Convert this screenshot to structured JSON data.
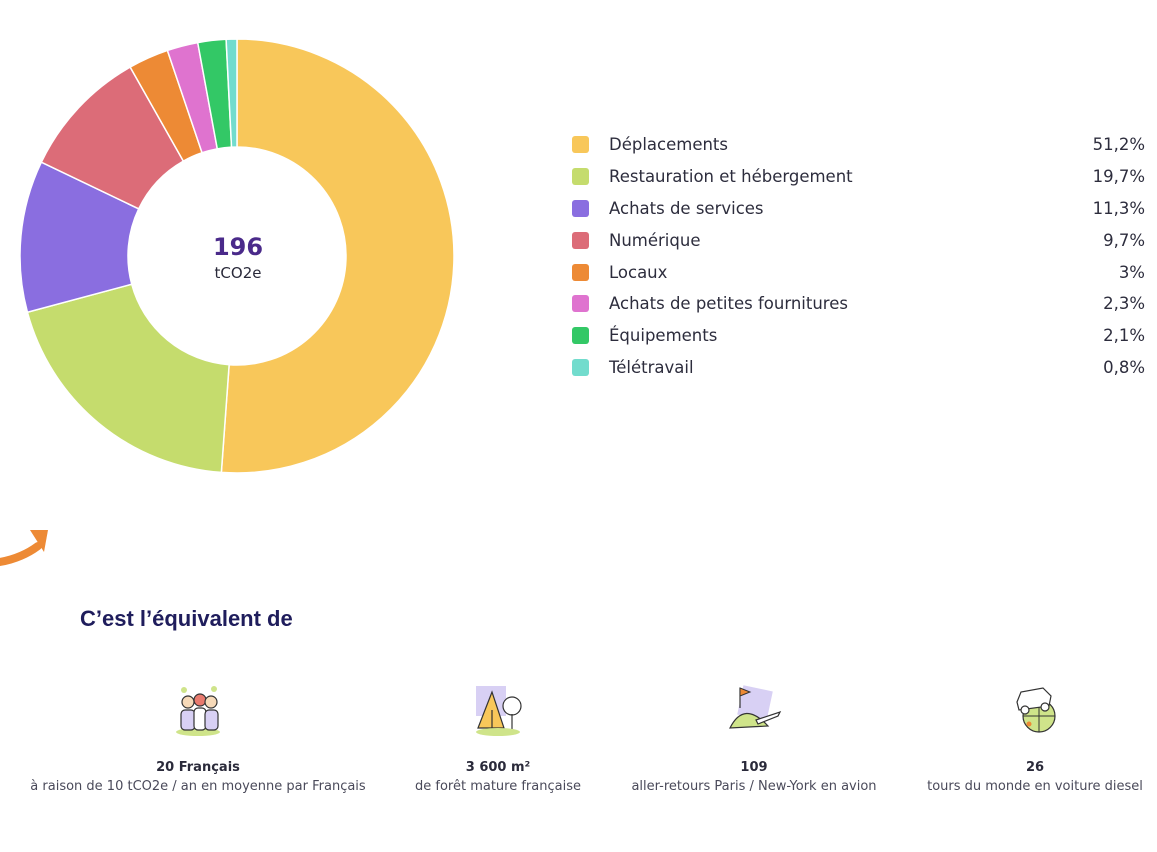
{
  "chart_data": {
    "type": "pie",
    "donut": true,
    "center_value": "196",
    "center_unit": "tCO2e",
    "categories": [
      "Déplacements",
      "Restauration et hébergement",
      "Achats de services",
      "Numérique",
      "Locaux",
      "Achats de petites fournitures",
      "Équipements",
      "Télétravail"
    ],
    "values": [
      51.2,
      19.7,
      11.3,
      9.7,
      3,
      2.3,
      2.1,
      0.8
    ],
    "value_labels": [
      "51,2%",
      "19,7%",
      "11,3%",
      "9,7%",
      "3%",
      "2,3%",
      "2,1%",
      "0,8%"
    ],
    "colors": [
      "#f8c75a",
      "#c5dc6d",
      "#8a6ee0",
      "#dc6c78",
      "#ed8a35",
      "#df73cf",
      "#33c866",
      "#72dccd"
    ],
    "legend_position": "right"
  },
  "equivalents": {
    "title": "C’est l’équivalent de",
    "items": [
      {
        "value": "20 Français",
        "description": "à raison de 10 tCO2e / an en moyenne par Français",
        "icon": "people-icon"
      },
      {
        "value": "3 600 m²",
        "description": "de forêt mature française",
        "icon": "forest-icon"
      },
      {
        "value": "109",
        "description": "aller-retours Paris / New-York en avion",
        "icon": "airplane-icon"
      },
      {
        "value": "26",
        "description": "tours du monde en voiture diesel",
        "icon": "car-globe-icon"
      }
    ]
  },
  "accent_color": "#ed8a35"
}
